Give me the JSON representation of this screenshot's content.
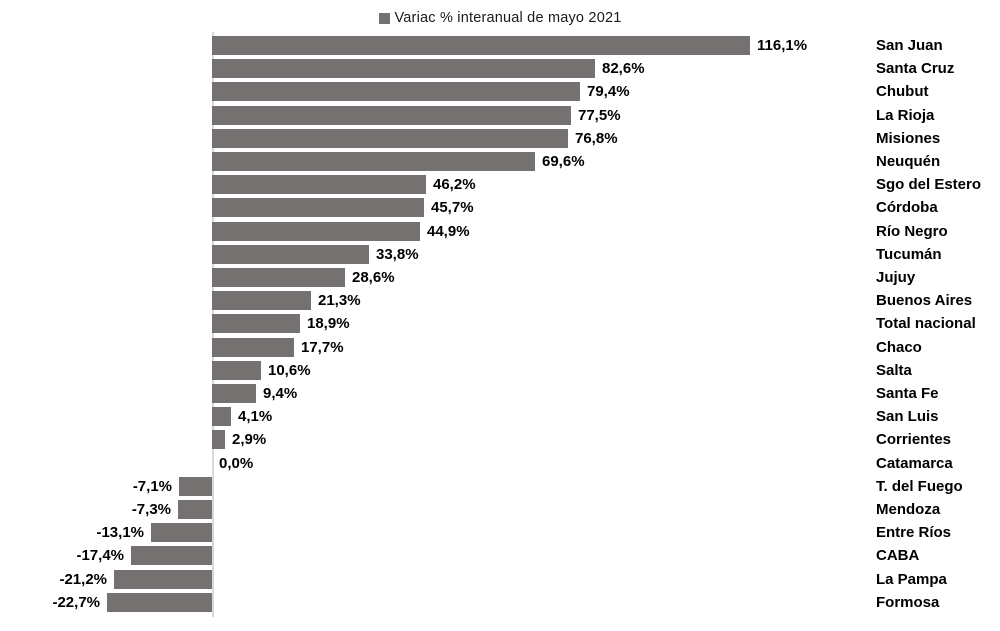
{
  "legend": {
    "label": "Variac % interanual de mayo 2021"
  },
  "colors": {
    "bar": "#757171",
    "axis_line": "#d9d9d9",
    "data_label": "#000000",
    "legend_text": "#1a1a1a",
    "background": "#ffffff"
  },
  "chart_data": {
    "type": "bar",
    "orientation": "horizontal",
    "title": "Variac % interanual de mayo 2021",
    "legend_position": "top",
    "grid": false,
    "value_axis_visible": false,
    "unit": "%",
    "decimal_separator": ",",
    "categories": [
      "San Juan",
      "Santa Cruz",
      "Chubut",
      "La Rioja",
      "Misiones",
      "Neuquén",
      "Sgo del Estero",
      "Córdoba",
      "Río Negro",
      "Tucumán",
      "Jujuy",
      "Buenos Aires",
      "Total nacional",
      "Chaco",
      "Salta",
      "Santa Fe",
      "San Luis",
      "Corrientes",
      "Catamarca",
      "T. del Fuego",
      "Mendoza",
      "Entre Ríos",
      "CABA",
      "La Pampa",
      "Formosa"
    ],
    "values": [
      116.1,
      82.6,
      79.4,
      77.5,
      76.8,
      69.6,
      46.2,
      45.7,
      44.9,
      33.8,
      28.6,
      21.3,
      18.9,
      17.7,
      10.6,
      9.4,
      4.1,
      2.9,
      0.0,
      -7.1,
      -7.3,
      -13.1,
      -17.4,
      -21.2,
      -22.7
    ],
    "value_labels": [
      "116,1%",
      "82,6%",
      "79,4%",
      "77,5%",
      "76,8%",
      "69,6%",
      "46,2%",
      "45,7%",
      "44,9%",
      "33,8%",
      "28,6%",
      "21,3%",
      "18,9%",
      "17,7%",
      "10,6%",
      "9,4%",
      "4,1%",
      "2,9%",
      "0,0%",
      "-7,1%",
      "-7,3%",
      "-13,1%",
      "-17,4%",
      "-21,2%",
      "-22,7%"
    ]
  }
}
